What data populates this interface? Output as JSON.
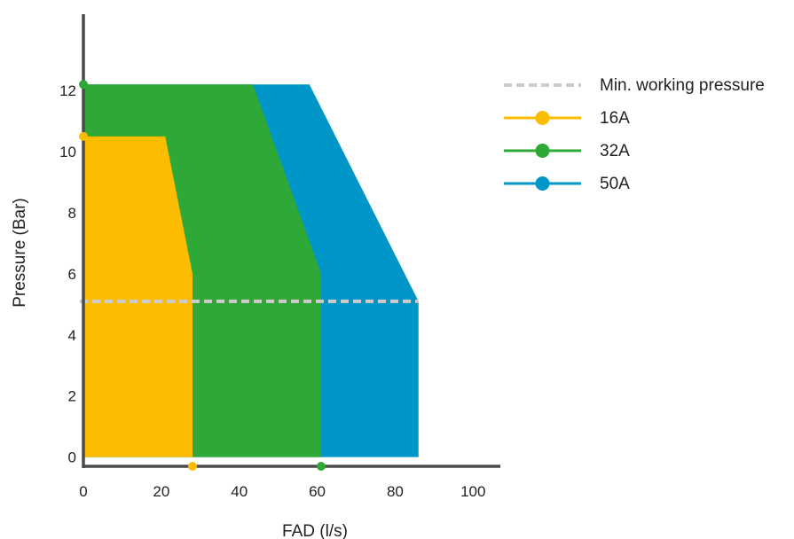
{
  "chart_data": {
    "type": "area",
    "xlabel": "FAD (l/s)",
    "ylabel": "Pressure (Bar)",
    "xlim": [
      0,
      107
    ],
    "ylim": [
      -0.3,
      14.5
    ],
    "xticks": [
      "0",
      "20",
      "40",
      "60",
      "80",
      "100"
    ],
    "xtick_values": [
      0,
      20,
      40,
      60,
      80,
      100
    ],
    "yticks": [
      "0",
      "2",
      "4",
      "6",
      "8",
      "10",
      "12"
    ],
    "ytick_values": [
      0,
      2,
      4,
      6,
      8,
      10,
      12
    ],
    "grid": false,
    "legend_position": "top-right",
    "reference_line": {
      "name": "Min. working pressure",
      "y": 5.1,
      "color": "#cccccc"
    },
    "series": [
      {
        "name": "50A",
        "color": "#0096c7",
        "x": [
          0,
          58,
          86,
          86,
          0
        ],
        "y": [
          12.2,
          12.2,
          5.1,
          0,
          0
        ]
      },
      {
        "name": "32A",
        "color": "#2ea836",
        "x": [
          0,
          43.5,
          61,
          61,
          0
        ],
        "y": [
          12.2,
          12.2,
          6,
          0,
          0
        ]
      },
      {
        "name": "16A",
        "color": "#fcbc00",
        "x": [
          0,
          21,
          28,
          28,
          0
        ],
        "y": [
          10.5,
          10.5,
          6,
          0,
          0
        ]
      }
    ],
    "markers": [
      {
        "series": "32A",
        "x": 0,
        "y": 12.2
      },
      {
        "series": "16A",
        "x": 0,
        "y": 10.5
      },
      {
        "series": "16A",
        "x": 28,
        "y": -0.3
      },
      {
        "series": "32A",
        "x": 61,
        "y": -0.3
      }
    ]
  }
}
